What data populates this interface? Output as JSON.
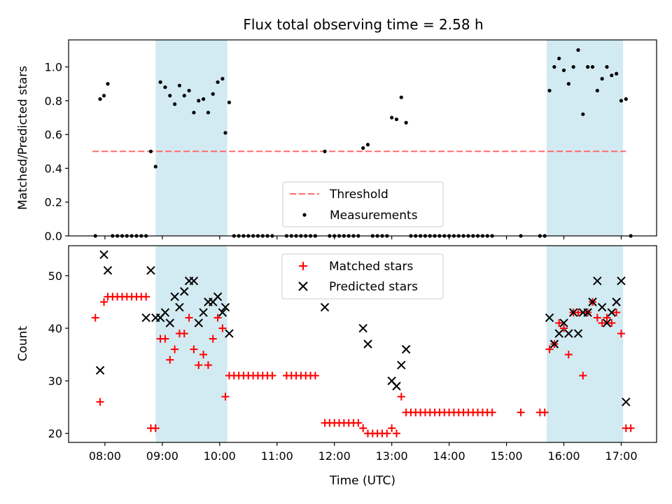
{
  "chart_data": [
    {
      "type": "scatter",
      "title": "Flux total observing time = 2.58 h",
      "ylabel": "Matched/Predicted stars",
      "xlabel": "",
      "xlim": [
        "07:22",
        "17:37"
      ],
      "ylim": [
        0,
        1.16
      ],
      "x_ticks": [
        "08:00",
        "09:00",
        "10:00",
        "11:00",
        "12:00",
        "13:00",
        "14:00",
        "15:00",
        "16:00",
        "17:00"
      ],
      "y_ticks": [
        "0.0",
        "0.2",
        "0.4",
        "0.6",
        "0.8",
        "1.0"
      ],
      "y_tick_values": [
        0,
        0.2,
        0.4,
        0.6,
        0.8,
        1.0
      ],
      "grid": false,
      "legend_position": "lower center",
      "shaded_intervals": [
        [
          "08:53",
          "10:08"
        ],
        [
          "15:42",
          "17:02"
        ]
      ],
      "shade_color": "#add8e6",
      "threshold": {
        "name": "Threshold",
        "value": 0.5,
        "from": "07:47",
        "to": "17:05",
        "color": "#ff6b6b"
      },
      "measurements": {
        "name": "Measurements",
        "color": "#000000",
        "points": [
          [
            "07:50",
            0
          ],
          [
            "07:55",
            0.81
          ],
          [
            "07:59",
            0.83
          ],
          [
            "08:03",
            0.9
          ],
          [
            "08:08",
            0
          ],
          [
            "08:13",
            0
          ],
          [
            "08:18",
            0
          ],
          [
            "08:23",
            0
          ],
          [
            "08:28",
            0
          ],
          [
            "08:33",
            0
          ],
          [
            "08:38",
            0
          ],
          [
            "08:43",
            0
          ],
          [
            "08:48",
            0.5
          ],
          [
            "08:53",
            0.41
          ],
          [
            "08:58",
            0.91
          ],
          [
            "09:03",
            0.88
          ],
          [
            "09:08",
            0.83
          ],
          [
            "09:13",
            0.78
          ],
          [
            "09:18",
            0.89
          ],
          [
            "09:23",
            0.83
          ],
          [
            "09:28",
            0.86
          ],
          [
            "09:33",
            0.73
          ],
          [
            "09:38",
            0.8
          ],
          [
            "09:43",
            0.81
          ],
          [
            "09:48",
            0.73
          ],
          [
            "09:53",
            0.84
          ],
          [
            "09:58",
            0.91
          ],
          [
            "10:03",
            0.93
          ],
          [
            "10:06",
            0.61
          ],
          [
            "10:10",
            0.79
          ],
          [
            "10:15",
            0
          ],
          [
            "10:20",
            0
          ],
          [
            "10:25",
            0
          ],
          [
            "10:30",
            0
          ],
          [
            "10:35",
            0
          ],
          [
            "10:40",
            0
          ],
          [
            "10:45",
            0
          ],
          [
            "10:50",
            0
          ],
          [
            "10:55",
            0
          ],
          [
            "11:10",
            0
          ],
          [
            "11:15",
            0
          ],
          [
            "11:20",
            0
          ],
          [
            "11:25",
            0
          ],
          [
            "11:30",
            0
          ],
          [
            "11:35",
            0
          ],
          [
            "11:40",
            0
          ],
          [
            "11:50",
            0.5
          ],
          [
            "11:55",
            0
          ],
          [
            "12:00",
            0
          ],
          [
            "12:05",
            0
          ],
          [
            "12:10",
            0
          ],
          [
            "12:15",
            0
          ],
          [
            "12:20",
            0
          ],
          [
            "12:25",
            0
          ],
          [
            "12:30",
            0.52
          ],
          [
            "12:35",
            0.54
          ],
          [
            "12:40",
            0
          ],
          [
            "12:45",
            0
          ],
          [
            "12:50",
            0
          ],
          [
            "12:55",
            0
          ],
          [
            "13:00",
            0.7
          ],
          [
            "13:05",
            0.69
          ],
          [
            "13:10",
            0.82
          ],
          [
            "13:15",
            0.67
          ],
          [
            "13:20",
            0
          ],
          [
            "13:25",
            0
          ],
          [
            "13:30",
            0
          ],
          [
            "13:35",
            0
          ],
          [
            "13:40",
            0
          ],
          [
            "13:45",
            0
          ],
          [
            "13:50",
            0
          ],
          [
            "13:55",
            0
          ],
          [
            "14:00",
            0
          ],
          [
            "14:05",
            0
          ],
          [
            "14:10",
            0
          ],
          [
            "14:15",
            0
          ],
          [
            "14:20",
            0
          ],
          [
            "14:25",
            0
          ],
          [
            "14:30",
            0
          ],
          [
            "14:35",
            0
          ],
          [
            "14:40",
            0
          ],
          [
            "14:45",
            0
          ],
          [
            "15:15",
            0
          ],
          [
            "15:35",
            0
          ],
          [
            "15:40",
            0
          ],
          [
            "15:45",
            0.86
          ],
          [
            "15:50",
            1.0
          ],
          [
            "15:55",
            1.05
          ],
          [
            "16:00",
            0.98
          ],
          [
            "16:05",
            0.9
          ],
          [
            "16:10",
            1.0
          ],
          [
            "16:15",
            1.1
          ],
          [
            "16:20",
            0.72
          ],
          [
            "16:25",
            1.0
          ],
          [
            "16:30",
            1.0
          ],
          [
            "16:35",
            0.86
          ],
          [
            "16:40",
            0.93
          ],
          [
            "16:45",
            1.0
          ],
          [
            "16:50",
            0.95
          ],
          [
            "16:55",
            0.96
          ],
          [
            "17:00",
            0.8
          ],
          [
            "17:05",
            0.81
          ],
          [
            "17:10",
            0
          ]
        ]
      }
    },
    {
      "type": "scatter",
      "title": "",
      "ylabel": "Count",
      "xlabel": "Time (UTC)",
      "xlim": [
        "07:22",
        "17:37"
      ],
      "ylim": [
        18.3,
        55.7
      ],
      "x_ticks": [
        "08:00",
        "09:00",
        "10:00",
        "11:00",
        "12:00",
        "13:00",
        "14:00",
        "15:00",
        "16:00",
        "17:00"
      ],
      "y_ticks": [
        "20",
        "30",
        "40",
        "50"
      ],
      "y_tick_values": [
        20,
        30,
        40,
        50
      ],
      "grid": false,
      "legend_position": "upper center",
      "shaded_intervals": [
        [
          "08:53",
          "10:08"
        ],
        [
          "15:42",
          "17:02"
        ]
      ],
      "shade_color": "#add8e6",
      "series": [
        {
          "name": "Matched stars",
          "marker": "+",
          "color": "#ff0000",
          "points": [
            [
              "07:50",
              42
            ],
            [
              "07:55",
              26
            ],
            [
              "07:59",
              45
            ],
            [
              "08:03",
              46
            ],
            [
              "08:08",
              46
            ],
            [
              "08:13",
              46
            ],
            [
              "08:18",
              46
            ],
            [
              "08:23",
              46
            ],
            [
              "08:28",
              46
            ],
            [
              "08:33",
              46
            ],
            [
              "08:38",
              46
            ],
            [
              "08:43",
              46
            ],
            [
              "08:48",
              21
            ],
            [
              "08:53",
              21
            ],
            [
              "08:58",
              38
            ],
            [
              "09:03",
              38
            ],
            [
              "09:08",
              34
            ],
            [
              "09:13",
              36
            ],
            [
              "09:18",
              39
            ],
            [
              "09:23",
              39
            ],
            [
              "09:28",
              42
            ],
            [
              "09:33",
              36
            ],
            [
              "09:38",
              33
            ],
            [
              "09:43",
              35
            ],
            [
              "09:48",
              33
            ],
            [
              "09:53",
              38
            ],
            [
              "09:58",
              42
            ],
            [
              "10:03",
              40
            ],
            [
              "10:06",
              27
            ],
            [
              "10:10",
              31
            ],
            [
              "10:15",
              31
            ],
            [
              "10:20",
              31
            ],
            [
              "10:25",
              31
            ],
            [
              "10:30",
              31
            ],
            [
              "10:35",
              31
            ],
            [
              "10:40",
              31
            ],
            [
              "10:45",
              31
            ],
            [
              "10:50",
              31
            ],
            [
              "10:55",
              31
            ],
            [
              "11:10",
              31
            ],
            [
              "11:15",
              31
            ],
            [
              "11:20",
              31
            ],
            [
              "11:25",
              31
            ],
            [
              "11:30",
              31
            ],
            [
              "11:35",
              31
            ],
            [
              "11:40",
              31
            ],
            [
              "11:50",
              22
            ],
            [
              "11:55",
              22
            ],
            [
              "12:00",
              22
            ],
            [
              "12:05",
              22
            ],
            [
              "12:10",
              22
            ],
            [
              "12:15",
              22
            ],
            [
              "12:20",
              22
            ],
            [
              "12:25",
              22
            ],
            [
              "12:30",
              21
            ],
            [
              "12:35",
              20
            ],
            [
              "12:40",
              20
            ],
            [
              "12:45",
              20
            ],
            [
              "12:50",
              20
            ],
            [
              "12:55",
              20
            ],
            [
              "13:00",
              21
            ],
            [
              "13:05",
              20
            ],
            [
              "13:10",
              27
            ],
            [
              "13:15",
              24
            ],
            [
              "13:20",
              24
            ],
            [
              "13:25",
              24
            ],
            [
              "13:30",
              24
            ],
            [
              "13:35",
              24
            ],
            [
              "13:40",
              24
            ],
            [
              "13:45",
              24
            ],
            [
              "13:50",
              24
            ],
            [
              "13:55",
              24
            ],
            [
              "14:00",
              24
            ],
            [
              "14:05",
              24
            ],
            [
              "14:10",
              24
            ],
            [
              "14:15",
              24
            ],
            [
              "14:20",
              24
            ],
            [
              "14:25",
              24
            ],
            [
              "14:30",
              24
            ],
            [
              "14:35",
              24
            ],
            [
              "14:40",
              24
            ],
            [
              "14:45",
              24
            ],
            [
              "15:15",
              24
            ],
            [
              "15:35",
              24
            ],
            [
              "15:40",
              24
            ],
            [
              "15:45",
              36
            ],
            [
              "15:50",
              37
            ],
            [
              "15:55",
              41
            ],
            [
              "16:00",
              40
            ],
            [
              "16:05",
              35
            ],
            [
              "16:10",
              43
            ],
            [
              "16:15",
              43
            ],
            [
              "16:20",
              31
            ],
            [
              "16:25",
              43
            ],
            [
              "16:30",
              45
            ],
            [
              "16:35",
              42
            ],
            [
              "16:40",
              41
            ],
            [
              "16:45",
              42
            ],
            [
              "16:50",
              41
            ],
            [
              "16:55",
              43
            ],
            [
              "17:00",
              39
            ],
            [
              "17:05",
              21
            ],
            [
              "17:10",
              21
            ]
          ]
        },
        {
          "name": "Predicted stars",
          "marker": "x",
          "color": "#000000",
          "points": [
            [
              "07:55",
              32
            ],
            [
              "07:59",
              54
            ],
            [
              "08:03",
              51
            ],
            [
              "08:43",
              42
            ],
            [
              "08:48",
              51
            ],
            [
              "08:53",
              42
            ],
            [
              "08:58",
              42
            ],
            [
              "09:03",
              43
            ],
            [
              "09:08",
              41
            ],
            [
              "09:13",
              46
            ],
            [
              "09:18",
              44
            ],
            [
              "09:23",
              47
            ],
            [
              "09:28",
              49
            ],
            [
              "09:33",
              49
            ],
            [
              "09:38",
              41
            ],
            [
              "09:43",
              43
            ],
            [
              "09:48",
              45
            ],
            [
              "09:53",
              45
            ],
            [
              "09:58",
              46
            ],
            [
              "10:03",
              43
            ],
            [
              "10:06",
              44
            ],
            [
              "10:10",
              39
            ],
            [
              "11:50",
              44
            ],
            [
              "12:30",
              40
            ],
            [
              "12:35",
              37
            ],
            [
              "13:00",
              30
            ],
            [
              "13:05",
              29
            ],
            [
              "13:10",
              33
            ],
            [
              "13:15",
              36
            ],
            [
              "15:45",
              42
            ],
            [
              "15:50",
              37
            ],
            [
              "15:55",
              39
            ],
            [
              "16:00",
              41
            ],
            [
              "16:05",
              39
            ],
            [
              "16:10",
              43
            ],
            [
              "16:15",
              39
            ],
            [
              "16:20",
              43
            ],
            [
              "16:25",
              43
            ],
            [
              "16:30",
              45
            ],
            [
              "16:35",
              49
            ],
            [
              "16:40",
              44
            ],
            [
              "16:45",
              41
            ],
            [
              "16:50",
              43
            ],
            [
              "16:55",
              45
            ],
            [
              "17:00",
              49
            ],
            [
              "17:05",
              26
            ]
          ]
        }
      ]
    }
  ]
}
